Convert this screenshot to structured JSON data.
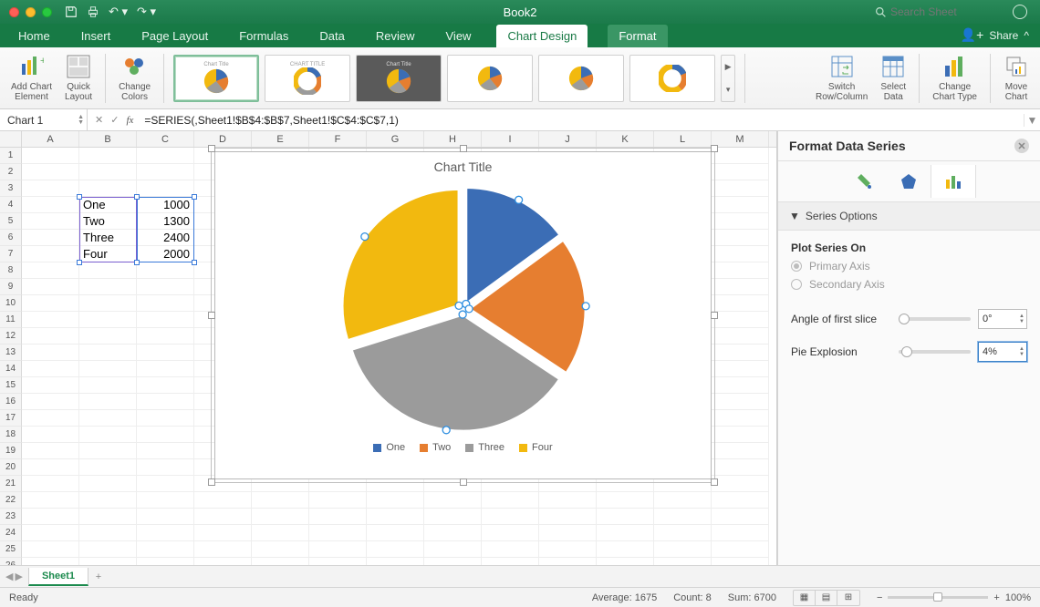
{
  "window": {
    "title": "Book2",
    "search_placeholder": "Search Sheet"
  },
  "ribbon": {
    "tabs": [
      "Home",
      "Insert",
      "Page Layout",
      "Formulas",
      "Data",
      "Review",
      "View",
      "Chart Design",
      "Format"
    ],
    "active": "Chart Design",
    "share": "Share",
    "buttons": {
      "add_element": "Add Chart\nElement",
      "quick_layout": "Quick\nLayout",
      "change_colors": "Change\nColors",
      "switch": "Switch\nRow/Column",
      "select_data": "Select\nData",
      "change_type": "Change\nChart Type",
      "move_chart": "Move\nChart"
    },
    "style_thumbs": [
      "Chart Title",
      "CHART TITLE",
      "Chart Title",
      "",
      "",
      ""
    ]
  },
  "formula_bar": {
    "name": "Chart 1",
    "formula": "=SERIES(,Sheet1!$B$4:$B$7,Sheet1!$C$4:$C$7,1)"
  },
  "columns": [
    "A",
    "B",
    "C",
    "D",
    "E",
    "F",
    "G",
    "H",
    "I",
    "J",
    "K",
    "L",
    "M"
  ],
  "row_count": 26,
  "data": {
    "rows": [
      {
        "label": "One",
        "value": "1000"
      },
      {
        "label": "Two",
        "value": "1300"
      },
      {
        "label": "Three",
        "value": "2400"
      },
      {
        "label": "Four",
        "value": "2000"
      }
    ]
  },
  "chart": {
    "title": "Chart Title",
    "type": "pie",
    "series": [
      {
        "name": "One",
        "value": 1000,
        "color": "#3b6db5"
      },
      {
        "name": "Two",
        "value": 1300,
        "color": "#e67e30"
      },
      {
        "name": "Three",
        "value": 2400,
        "color": "#9b9b9b"
      },
      {
        "name": "Four",
        "value": 2000,
        "color": "#f2b90f"
      }
    ],
    "explosion_pct": 4,
    "background": "#ffffff",
    "title_fontsize": 14,
    "title_color": "#5a5a5a",
    "legend_fontsize": 11
  },
  "panel": {
    "title": "Format Data Series",
    "section": "Series Options",
    "plot_label": "Plot Series On",
    "primary": "Primary Axis",
    "secondary": "Secondary Axis",
    "angle_label": "Angle of first slice",
    "angle_value": "0°",
    "explosion_label": "Pie Explosion",
    "explosion_value": "4%"
  },
  "sheets": {
    "active": "Sheet1"
  },
  "status": {
    "ready": "Ready",
    "average": "Average: 1675",
    "count": "Count: 8",
    "sum": "Sum: 6700",
    "zoom": "100%"
  }
}
